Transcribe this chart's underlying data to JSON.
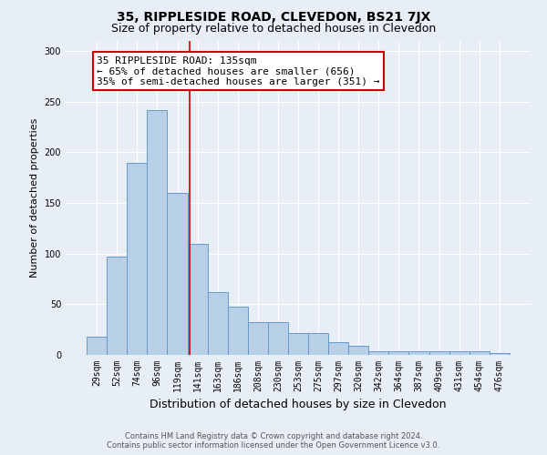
{
  "title": "35, RIPPLESIDE ROAD, CLEVEDON, BS21 7JX",
  "subtitle": "Size of property relative to detached houses in Clevedon",
  "xlabel": "Distribution of detached houses by size in Clevedon",
  "ylabel": "Number of detached properties",
  "bar_labels": [
    "29sqm",
    "52sqm",
    "74sqm",
    "96sqm",
    "119sqm",
    "141sqm",
    "163sqm",
    "186sqm",
    "208sqm",
    "230sqm",
    "253sqm",
    "275sqm",
    "297sqm",
    "320sqm",
    "342sqm",
    "364sqm",
    "387sqm",
    "409sqm",
    "431sqm",
    "454sqm",
    "476sqm"
  ],
  "bar_heights": [
    18,
    97,
    190,
    242,
    160,
    110,
    62,
    48,
    32,
    32,
    22,
    22,
    13,
    9,
    4,
    4,
    4,
    4,
    4,
    4,
    2
  ],
  "bar_color": "#b8cfe8",
  "bar_edgecolor": "#6699cc",
  "background_color": "#e8eef5",
  "red_line_x": 4.62,
  "annotation_text": "35 RIPPLESIDE ROAD: 135sqm\n← 65% of detached houses are smaller (656)\n35% of semi-detached houses are larger (351) →",
  "annotation_box_color": "#ffffff",
  "annotation_box_edgecolor": "#cc0000",
  "red_line_color": "#cc0000",
  "ylim": [
    0,
    310
  ],
  "yticks": [
    0,
    50,
    100,
    150,
    200,
    250,
    300
  ],
  "footer_line1": "Contains HM Land Registry data © Crown copyright and database right 2024.",
  "footer_line2": "Contains public sector information licensed under the Open Government Licence v3.0.",
  "title_fontsize": 10,
  "subtitle_fontsize": 9,
  "xlabel_fontsize": 9,
  "ylabel_fontsize": 8,
  "tick_fontsize": 7,
  "annotation_fontsize": 8,
  "footer_fontsize": 6
}
